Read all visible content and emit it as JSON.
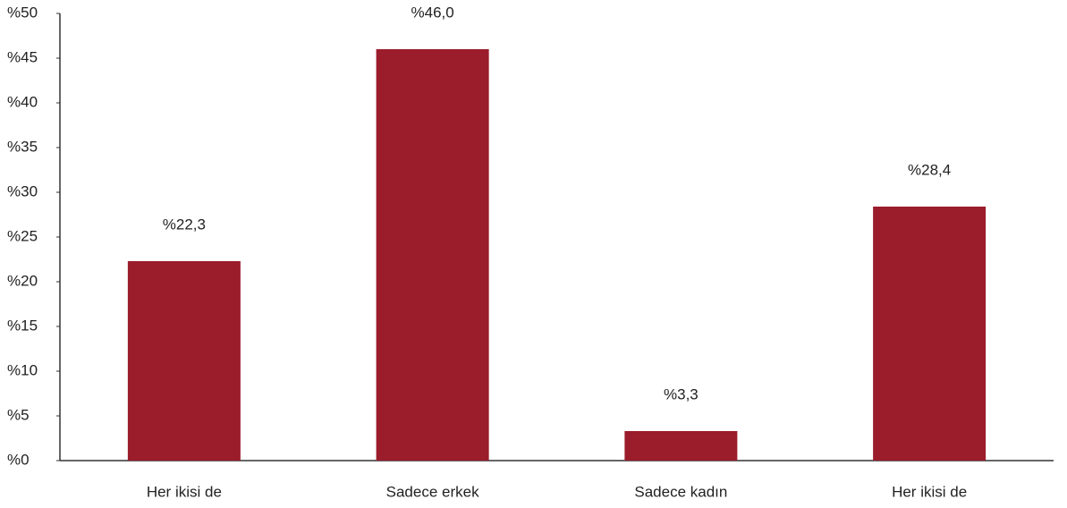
{
  "chart_data": {
    "type": "bar",
    "categories": [
      "Her ikisi de",
      "Sadece erkek",
      "Sadece kadın",
      "Her ikisi de"
    ],
    "values": [
      22.3,
      46.0,
      3.3,
      28.4
    ],
    "value_labels": [
      "%22,3",
      "%46,0",
      "%3,3",
      "%28,4"
    ],
    "color": "#9b1c2b",
    "ylim": [
      0,
      50
    ],
    "yticks": [
      {
        "value": 0,
        "label": "%0"
      },
      {
        "value": 5,
        "label": "%5"
      },
      {
        "value": 10,
        "label": "%10"
      },
      {
        "value": 15,
        "label": "%15"
      },
      {
        "value": 20,
        "label": "%20"
      },
      {
        "value": 25,
        "label": "%25"
      },
      {
        "value": 30,
        "label": "%30"
      },
      {
        "value": 35,
        "label": "%35"
      },
      {
        "value": 40,
        "label": "%40"
      },
      {
        "value": 45,
        "label": "%45"
      },
      {
        "value": 50,
        "label": "%50"
      }
    ],
    "grid": false
  }
}
